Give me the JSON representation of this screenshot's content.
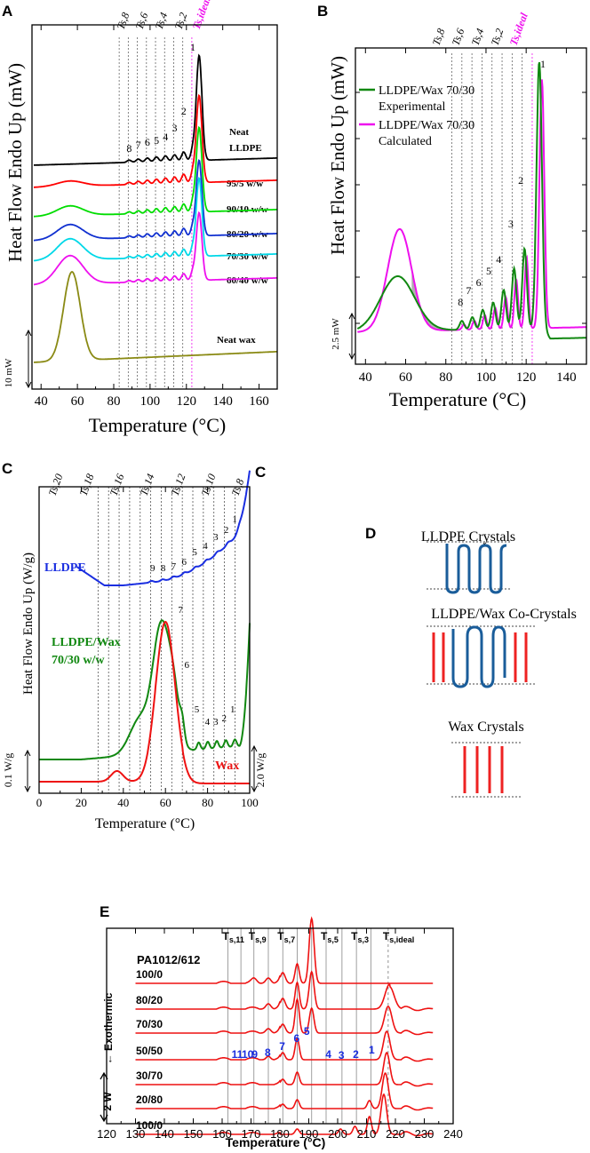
{
  "chart_data": [
    {
      "panel": "A",
      "type": "line",
      "xlabel": "Temperature (°C)",
      "ylabel": "Heat Flow Endo Up (mW)",
      "xlim": [
        35,
        170
      ],
      "xticks": [
        40,
        60,
        80,
        100,
        120,
        140,
        160
      ],
      "scale_bar": "10 mW",
      "step_labels": [
        "Ts,8",
        "Ts,6",
        "Ts,4",
        "Ts,2",
        "Ts,ideal"
      ],
      "step_temps": [
        83,
        88,
        93,
        98,
        103,
        108,
        113,
        118
      ],
      "ideal_temp": 123,
      "peak_numbers": [
        "8",
        "7",
        "6",
        "5",
        "4",
        "3",
        "2",
        "1"
      ],
      "series": [
        {
          "name": "Neat LLDPE",
          "label_lines": [
            "Neat",
            "LLDPE"
          ],
          "color": "#000000",
          "base": 0
        },
        {
          "name": "95/5 w/w",
          "label_lines": [
            "95/5 w/w"
          ],
          "color": "#ff0000",
          "base": 1
        },
        {
          "name": "90/10 w/w",
          "label_lines": [
            "90/10 w/w"
          ],
          "color": "#00dd00",
          "base": 2
        },
        {
          "name": "80/20 w/w",
          "label_lines": [
            "80/20 w/w"
          ],
          "color": "#1030d0",
          "base": 3
        },
        {
          "name": "70/30 w/w",
          "label_lines": [
            "70/30 w/w"
          ],
          "color": "#00d8e8",
          "base": 4
        },
        {
          "name": "60/40 w/w",
          "label_lines": [
            "60/40 w/w"
          ],
          "color": "#ee10ee",
          "base": 5
        },
        {
          "name": "Neat wax",
          "label_lines": [
            "Neat wax"
          ],
          "color": "#8a8a14",
          "base": 6
        }
      ]
    },
    {
      "panel": "B",
      "type": "line",
      "xlabel": "Temperature (°C)",
      "ylabel": "Heat Flow Endo Up (mW)",
      "xlim": [
        35,
        150
      ],
      "xticks": [
        40,
        60,
        80,
        100,
        120,
        140
      ],
      "scale_bar": "2.5 mW",
      "step_labels": [
        "Ts,8",
        "Ts,6",
        "Ts,4",
        "Ts,2",
        "Ts,ideal"
      ],
      "peak_numbers": [
        "8",
        "7",
        "6",
        "5",
        "4",
        "3",
        "2",
        "1"
      ],
      "series": [
        {
          "name": "LLDPE/Wax 70/30 Experimental",
          "label_lines": [
            "LLDPE/Wax 70/30",
            "Experimental"
          ],
          "color": "#118811"
        },
        {
          "name": "LLDPE/Wax 70/30 Calculated",
          "label_lines": [
            "LLDPE/Wax 70/30",
            "Calculated"
          ],
          "color": "#ee10ee"
        }
      ]
    },
    {
      "panel": "C",
      "type": "line",
      "xlabel": "Temperature (°C)",
      "ylabel": "Heat Flow Endo Up (W/g)",
      "xlim": [
        0,
        100
      ],
      "xticks": [
        0,
        20,
        40,
        60,
        80,
        100
      ],
      "scale_left": "0.1 W/g",
      "scale_right": "2.0 W/g",
      "step_labels": [
        "Ts,20",
        "Ts,18",
        "Ts,16",
        "Ts,14",
        "Ts,12",
        "Ts,10",
        "Ts,8"
      ],
      "lldpe_peaks": [
        "9",
        "8",
        "7",
        "6",
        "5",
        "4",
        "3",
        "2",
        "1"
      ],
      "blend_peaks_top": [
        "7",
        "6"
      ],
      "blend_peaks_bottom": [
        "5",
        "4",
        "3",
        "2",
        "1"
      ],
      "series": [
        {
          "name": "LLDPE",
          "label_lines": [
            "LLDPE"
          ],
          "color": "#1a2ee0"
        },
        {
          "name": "LLDPE/Wax 70/30 w/w",
          "label_lines": [
            "LLDPE/Wax",
            "70/30 w/w"
          ],
          "color": "#118811"
        },
        {
          "name": "Wax",
          "label_lines": [
            "Wax"
          ],
          "color": "#ee1111"
        }
      ]
    },
    {
      "panel": "E",
      "type": "line",
      "xlabel": "Temperature (°C)",
      "ylabel": "← Exothermic",
      "xlim": [
        120,
        240
      ],
      "xticks": [
        120,
        130,
        140,
        150,
        160,
        170,
        180,
        190,
        200,
        210,
        220,
        230,
        240
      ],
      "scale_bar": "2 W",
      "legend_title": "PA1012/612",
      "step_labels": [
        "T s,11",
        "T s,9",
        "T s,7",
        "T s,5",
        "T s,3",
        "T s,ideal"
      ],
      "peak_numbers": [
        "11",
        "10",
        "9",
        "8",
        "7",
        "6",
        "5",
        "4",
        "3",
        "2",
        "1"
      ],
      "series_labels": [
        "100/0",
        "80/20",
        "70/30",
        "50/50",
        "30/70",
        "20/80",
        "100/0"
      ]
    }
  ],
  "panel_D": {
    "label": "D",
    "lldpe_title": "LLDPE Crystals",
    "cocrystal_title": "LLDPE/Wax Co-Crystals",
    "wax_title": "Wax Crystals"
  },
  "panels": {
    "a": "A",
    "b": "B",
    "c": "C",
    "c2": "C",
    "e": "E"
  }
}
